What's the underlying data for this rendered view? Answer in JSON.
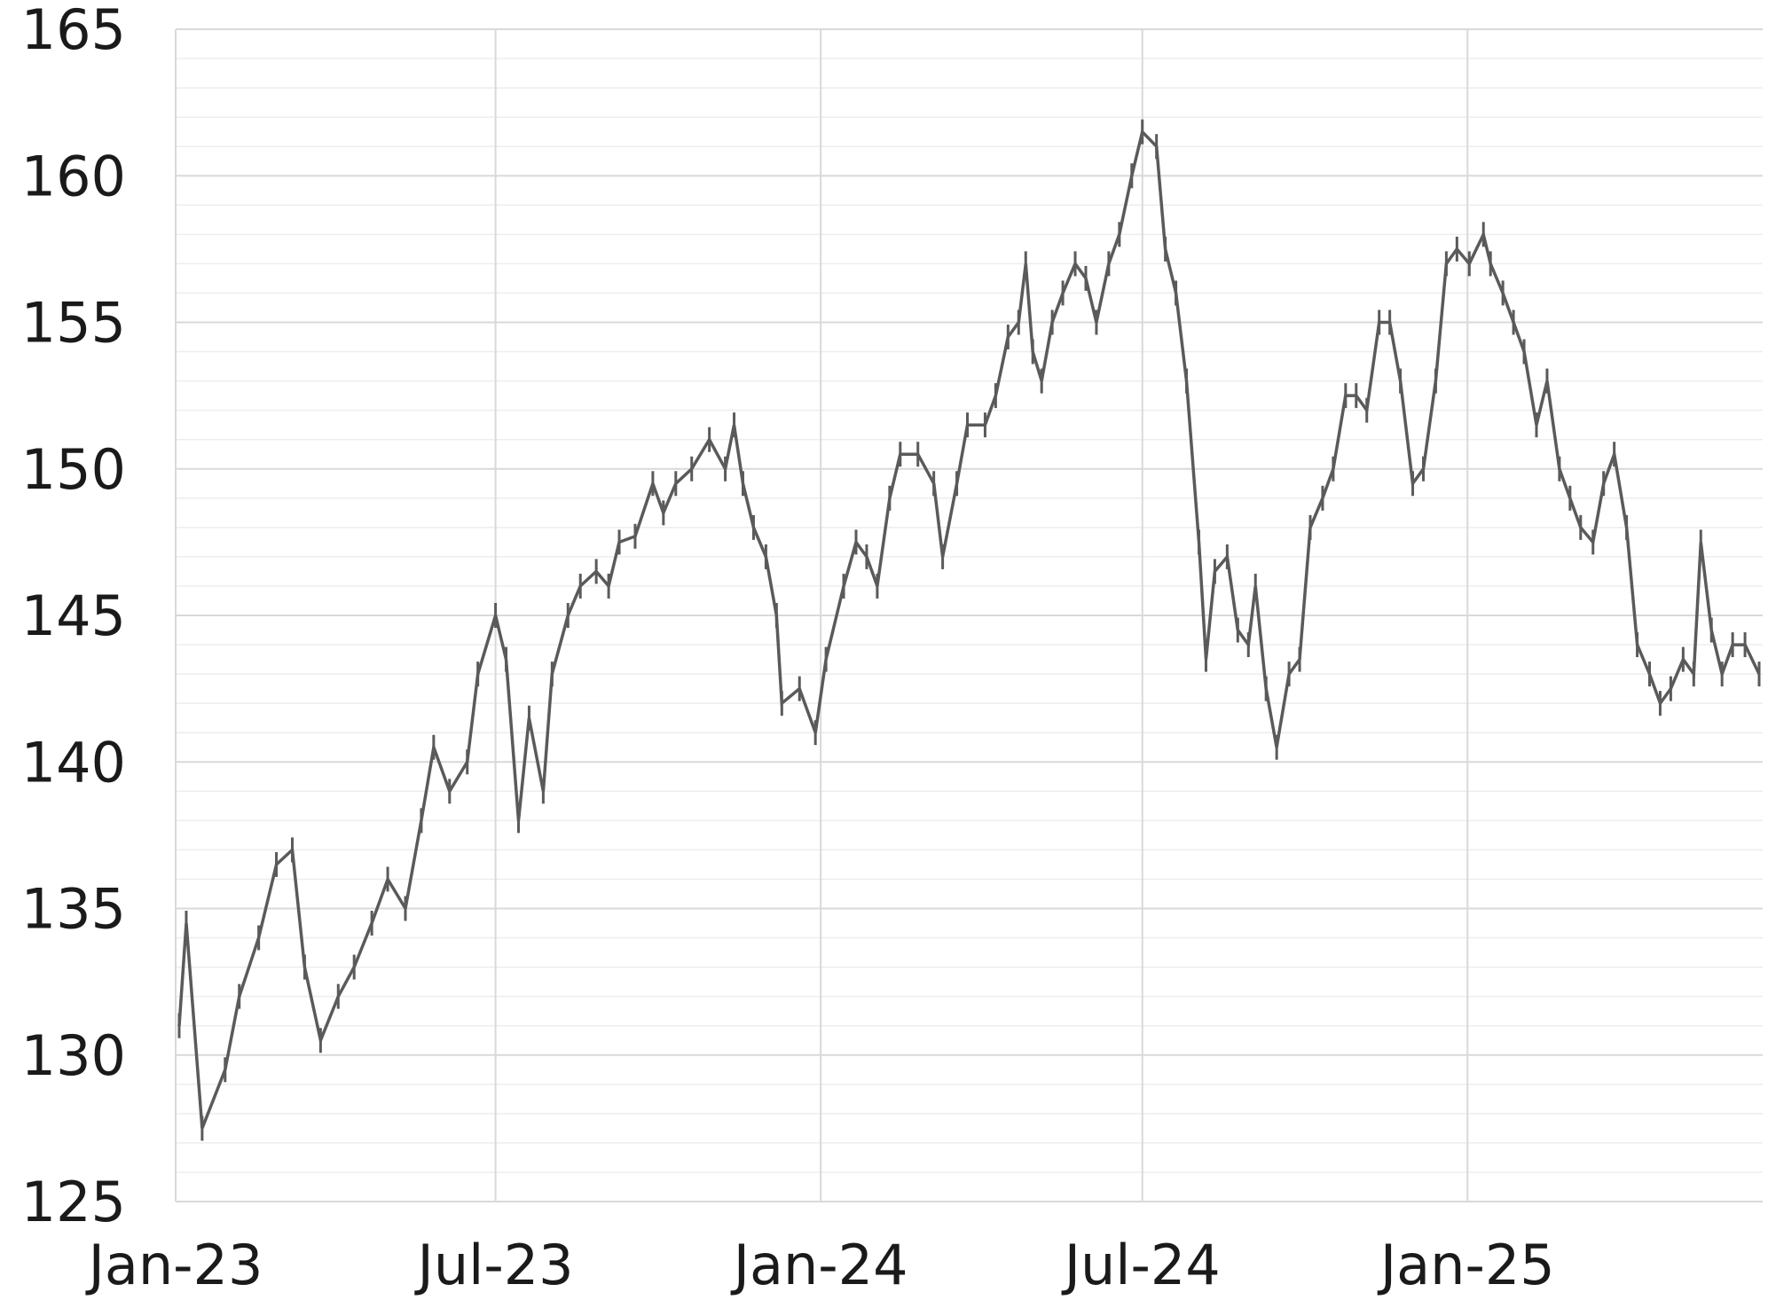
{
  "chart_data": {
    "type": "line",
    "title": "",
    "xlabel": "",
    "ylabel": "",
    "xlim": [
      "2023-01-01",
      "2025-06-17"
    ],
    "ylim": [
      125,
      165
    ],
    "grid": {
      "major_y_step": 5,
      "minor_y_step": 1,
      "vertical_at_x_ticks": true
    },
    "legend": "none",
    "line_color": "#5a5a5a",
    "grid_color": "#d9d9d9",
    "minor_grid_color": "#ededed",
    "y_ticks": [
      125,
      130,
      135,
      140,
      145,
      150,
      155,
      160,
      165
    ],
    "y_tick_labels": [
      "125",
      "130",
      "135",
      "140",
      "145",
      "150",
      "155",
      "160",
      "165"
    ],
    "x_ticks": [
      "2023-01-01",
      "2023-07-01",
      "2024-01-01",
      "2024-07-01",
      "2025-01-01"
    ],
    "x_tick_labels": [
      "Jan-23",
      "Jul-23",
      "Jan-24",
      "Jul-24",
      "Jan-25"
    ],
    "series": [
      {
        "x": [
          "2023-01-03",
          "2023-01-07",
          "2023-01-16",
          "2023-01-29",
          "2023-02-06",
          "2023-02-17",
          "2023-02-27",
          "2023-03-08",
          "2023-03-15",
          "2023-03-24",
          "2023-04-03",
          "2023-04-12",
          "2023-04-22",
          "2023-05-01",
          "2023-05-11",
          "2023-05-20",
          "2023-05-27",
          "2023-06-05",
          "2023-06-15",
          "2023-06-21",
          "2023-07-01",
          "2023-07-07",
          "2023-07-14",
          "2023-07-20",
          "2023-07-28",
          "2023-08-02",
          "2023-08-11",
          "2023-08-18",
          "2023-08-27",
          "2023-09-03",
          "2023-09-09",
          "2023-09-18",
          "2023-09-28",
          "2023-10-04",
          "2023-10-11",
          "2023-10-20",
          "2023-10-30",
          "2023-11-08",
          "2023-11-13",
          "2023-11-18",
          "2023-11-24",
          "2023-12-01",
          "2023-12-07",
          "2023-12-10",
          "2023-12-20",
          "2023-12-29",
          "2024-01-04",
          "2024-01-14",
          "2024-01-21",
          "2024-01-27",
          "2024-02-02",
          "2024-02-09",
          "2024-02-15",
          "2024-02-25",
          "2024-03-05",
          "2024-03-10",
          "2024-03-18",
          "2024-03-24",
          "2024-04-03",
          "2024-04-09",
          "2024-04-16",
          "2024-04-22",
          "2024-04-26",
          "2024-04-30",
          "2024-05-05",
          "2024-05-11",
          "2024-05-17",
          "2024-05-24",
          "2024-05-30",
          "2024-06-05",
          "2024-06-12",
          "2024-06-18",
          "2024-06-25",
          "2024-07-01",
          "2024-07-09",
          "2024-07-14",
          "2024-07-20",
          "2024-07-26",
          "2024-08-02",
          "2024-08-06",
          "2024-08-11",
          "2024-08-18",
          "2024-08-24",
          "2024-08-30",
          "2024-09-03",
          "2024-09-09",
          "2024-09-15",
          "2024-09-22",
          "2024-09-28",
          "2024-10-04",
          "2024-10-11",
          "2024-10-17",
          "2024-10-24",
          "2024-10-30",
          "2024-11-05",
          "2024-11-12",
          "2024-11-18",
          "2024-11-24",
          "2024-12-01",
          "2024-12-07",
          "2024-12-14",
          "2024-12-20",
          "2024-12-26",
          "2025-01-02",
          "2025-01-10",
          "2025-01-14",
          "2025-01-21",
          "2025-01-27",
          "2025-02-02",
          "2025-02-09",
          "2025-02-15",
          "2025-02-22",
          "2025-02-28",
          "2025-03-06",
          "2025-03-13",
          "2025-03-19",
          "2025-03-25",
          "2025-04-01",
          "2025-04-07",
          "2025-04-14",
          "2025-04-20",
          "2025-04-26",
          "2025-05-03",
          "2025-05-09",
          "2025-05-13",
          "2025-05-19",
          "2025-05-25",
          "2025-05-31",
          "2025-06-07",
          "2025-06-15"
        ],
        "y": [
          131,
          134.5,
          127.5,
          129.5,
          132,
          134,
          136.5,
          137,
          133,
          130.5,
          132,
          133,
          134.5,
          136,
          135,
          138,
          140.5,
          139,
          140,
          143,
          145,
          143.5,
          138,
          141.5,
          139,
          143,
          145,
          146,
          146.5,
          146,
          147.5,
          147.7,
          149.5,
          148.5,
          149.5,
          150,
          151,
          150,
          151.5,
          149.5,
          148,
          147,
          145,
          142,
          142.5,
          141,
          143.5,
          146,
          147.5,
          147,
          146,
          149,
          150.5,
          150.5,
          149.5,
          147,
          149.5,
          151.5,
          151.5,
          152.5,
          154.5,
          155,
          157,
          154,
          153,
          155,
          156,
          157,
          156.5,
          155,
          157,
          158,
          160,
          161.5,
          161,
          157.5,
          156,
          153,
          147.5,
          143.5,
          146.5,
          147,
          144.5,
          144,
          146,
          142.5,
          140.5,
          143,
          143.5,
          148,
          149,
          150,
          152.5,
          152.5,
          152,
          155,
          155,
          153,
          149.5,
          150,
          153,
          157,
          157.5,
          157,
          158,
          157,
          156,
          155,
          154,
          151.5,
          153,
          150,
          149,
          148,
          147.5,
          149.5,
          150.5,
          148,
          144,
          143,
          142,
          142.5,
          143.5,
          143,
          147.5,
          144.5,
          143,
          144,
          144,
          143
        ]
      }
    ]
  }
}
